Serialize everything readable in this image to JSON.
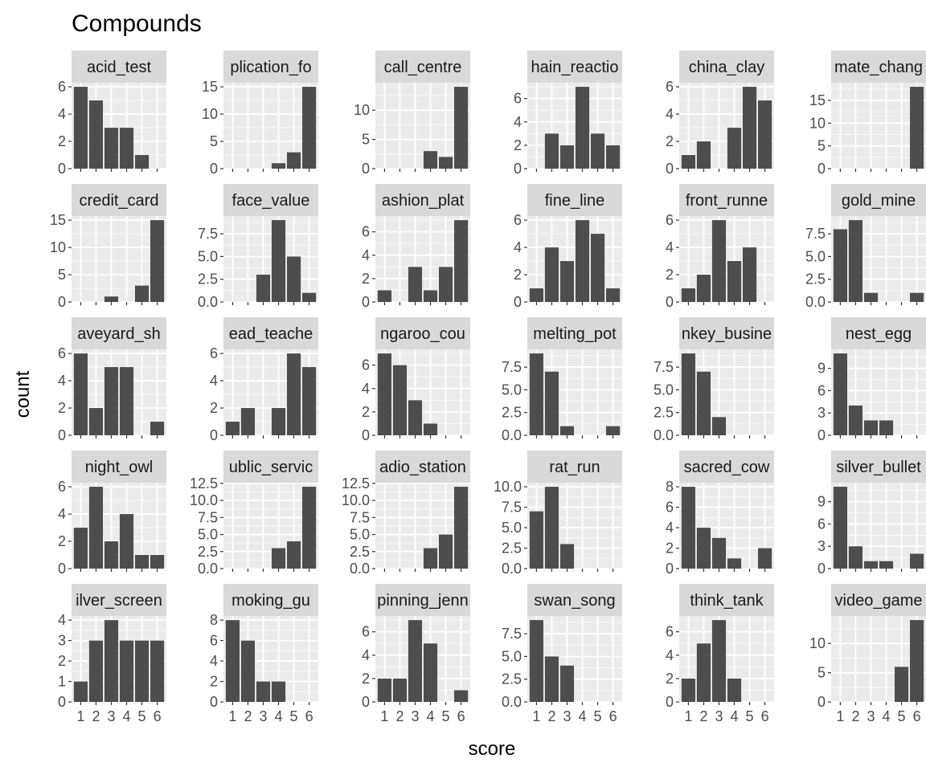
{
  "chart_data": {
    "type": "bar",
    "title": "Compounds",
    "xlabel": "score",
    "ylabel": "count",
    "x_categories": [
      1,
      2,
      3,
      4,
      5,
      6
    ],
    "x_tick_labels": [
      "1",
      "2",
      "3",
      "4",
      "5",
      "6"
    ],
    "colors": {
      "bar": "#4d4d4d",
      "panel": "#ebebeb",
      "grid": "#ffffff",
      "strip": "#d9d9d9"
    },
    "facets": [
      {
        "label": "acid_test",
        "ylim": [
          0,
          6.3
        ],
        "yticks": [
          0,
          2,
          4,
          6
        ],
        "ytick_labels": [
          "0",
          "2",
          "4",
          "6"
        ],
        "values": [
          6,
          5,
          3,
          3,
          1,
          0
        ]
      },
      {
        "label": "plication_fo",
        "ylim": [
          0,
          15.75
        ],
        "yticks": [
          0,
          5,
          10,
          15
        ],
        "ytick_labels": [
          "0",
          "5",
          "10",
          "15"
        ],
        "values": [
          0,
          0,
          0,
          1,
          3,
          15
        ]
      },
      {
        "label": "call_centre",
        "ylim": [
          0,
          14.7
        ],
        "yticks": [
          0,
          5,
          10
        ],
        "ytick_labels": [
          "0",
          "5",
          "10"
        ],
        "values": [
          0,
          0,
          0,
          3,
          2,
          14
        ]
      },
      {
        "label": "hain_reactio",
        "ylim": [
          0,
          7.35
        ],
        "yticks": [
          0,
          2,
          4,
          6
        ],
        "ytick_labels": [
          "0",
          "2",
          "4",
          "6"
        ],
        "values": [
          0,
          3,
          2,
          7,
          3,
          2
        ]
      },
      {
        "label": "china_clay",
        "ylim": [
          0,
          6.3
        ],
        "yticks": [
          0,
          2,
          4,
          6
        ],
        "ytick_labels": [
          "0",
          "2",
          "4",
          "6"
        ],
        "values": [
          1,
          2,
          0,
          3,
          6,
          5
        ]
      },
      {
        "label": "mate_chang",
        "ylim": [
          0,
          18.9
        ],
        "yticks": [
          0,
          5,
          10,
          15
        ],
        "ytick_labels": [
          "0",
          "5",
          "10",
          "15"
        ],
        "values": [
          0,
          0,
          0,
          0,
          0,
          18
        ]
      },
      {
        "label": "credit_card",
        "ylim": [
          0,
          15.75
        ],
        "yticks": [
          0,
          5,
          10,
          15
        ],
        "ytick_labels": [
          "0",
          "5",
          "10",
          "15"
        ],
        "values": [
          0,
          0,
          1,
          0,
          3,
          15
        ]
      },
      {
        "label": "face_value",
        "ylim": [
          0,
          9.45
        ],
        "yticks": [
          0,
          2.5,
          5,
          7.5
        ],
        "ytick_labels": [
          "0.0",
          "2.5",
          "5.0",
          "7.5"
        ],
        "values": [
          0,
          0,
          3,
          9,
          5,
          1
        ]
      },
      {
        "label": "ashion_plat",
        "ylim": [
          0,
          7.35
        ],
        "yticks": [
          0,
          2,
          4,
          6
        ],
        "ytick_labels": [
          "0",
          "2",
          "4",
          "6"
        ],
        "values": [
          1,
          0,
          3,
          1,
          3,
          7
        ]
      },
      {
        "label": "fine_line",
        "ylim": [
          0,
          6.3
        ],
        "yticks": [
          0,
          2,
          4,
          6
        ],
        "ytick_labels": [
          "0",
          "2",
          "4",
          "6"
        ],
        "values": [
          1,
          4,
          3,
          6,
          5,
          1
        ]
      },
      {
        "label": "front_runne",
        "ylim": [
          0,
          6.3
        ],
        "yticks": [
          0,
          2,
          4,
          6
        ],
        "ytick_labels": [
          "0",
          "2",
          "4",
          "6"
        ],
        "values": [
          1,
          2,
          6,
          3,
          4,
          0
        ]
      },
      {
        "label": "gold_mine",
        "ylim": [
          0,
          9.45
        ],
        "yticks": [
          0,
          2.5,
          5,
          7.5
        ],
        "ytick_labels": [
          "0.0",
          "2.5",
          "5.0",
          "7.5"
        ],
        "values": [
          8,
          9,
          1,
          0,
          0,
          1
        ]
      },
      {
        "label": "aveyard_sh",
        "ylim": [
          0,
          6.3
        ],
        "yticks": [
          0,
          2,
          4,
          6
        ],
        "ytick_labels": [
          "0",
          "2",
          "4",
          "6"
        ],
        "values": [
          6,
          2,
          5,
          5,
          0,
          1
        ]
      },
      {
        "label": "ead_teache",
        "ylim": [
          0,
          6.3
        ],
        "yticks": [
          0,
          2,
          4,
          6
        ],
        "ytick_labels": [
          "0",
          "2",
          "4",
          "6"
        ],
        "values": [
          1,
          2,
          0,
          2,
          6,
          5
        ]
      },
      {
        "label": "ngaroo_cou",
        "ylim": [
          0,
          7.35
        ],
        "yticks": [
          0,
          2,
          4,
          6
        ],
        "ytick_labels": [
          "0",
          "2",
          "4",
          "6"
        ],
        "values": [
          7,
          6,
          3,
          1,
          0,
          0
        ]
      },
      {
        "label": "melting_pot",
        "ylim": [
          0,
          9.45
        ],
        "yticks": [
          0,
          2.5,
          5,
          7.5
        ],
        "ytick_labels": [
          "0.0",
          "2.5",
          "5.0",
          "7.5"
        ],
        "values": [
          9,
          7,
          1,
          0,
          0,
          1
        ]
      },
      {
        "label": "nkey_busine",
        "ylim": [
          0,
          9.45
        ],
        "yticks": [
          0,
          2.5,
          5,
          7.5
        ],
        "ytick_labels": [
          "0.0",
          "2.5",
          "5.0",
          "7.5"
        ],
        "values": [
          9,
          7,
          2,
          0,
          0,
          0
        ]
      },
      {
        "label": "nest_egg",
        "ylim": [
          0,
          11.55
        ],
        "yticks": [
          0,
          3,
          6,
          9
        ],
        "ytick_labels": [
          "0",
          "3",
          "6",
          "9"
        ],
        "values": [
          11,
          4,
          2,
          2,
          0,
          0
        ]
      },
      {
        "label": "night_owl",
        "ylim": [
          0,
          6.3
        ],
        "yticks": [
          0,
          2,
          4,
          6
        ],
        "ytick_labels": [
          "0",
          "2",
          "4",
          "6"
        ],
        "values": [
          3,
          6,
          2,
          4,
          1,
          1
        ]
      },
      {
        "label": "ublic_servic",
        "ylim": [
          0,
          12.6
        ],
        "yticks": [
          0,
          2.5,
          5,
          7.5,
          10,
          12.5
        ],
        "ytick_labels": [
          "0.0",
          "2.5",
          "5.0",
          "7.5",
          "10.0",
          "12.5"
        ],
        "values": [
          0,
          0,
          0,
          3,
          4,
          12
        ]
      },
      {
        "label": "adio_station",
        "ylim": [
          0,
          12.6
        ],
        "yticks": [
          0,
          2.5,
          5,
          7.5,
          10,
          12.5
        ],
        "ytick_labels": [
          "0.0",
          "2.5",
          "5.0",
          "7.5",
          "10.0",
          "12.5"
        ],
        "values": [
          0,
          0,
          0,
          3,
          5,
          12
        ]
      },
      {
        "label": "rat_run",
        "ylim": [
          0,
          10.5
        ],
        "yticks": [
          0,
          2.5,
          5,
          7.5,
          10
        ],
        "ytick_labels": [
          "0.0",
          "2.5",
          "5.0",
          "7.5",
          "10.0"
        ],
        "values": [
          7,
          10,
          3,
          0,
          0,
          0
        ]
      },
      {
        "label": "sacred_cow",
        "ylim": [
          0,
          8.4
        ],
        "yticks": [
          0,
          2,
          4,
          6,
          8
        ],
        "ytick_labels": [
          "0",
          "2",
          "4",
          "6",
          "8"
        ],
        "values": [
          8,
          4,
          3,
          1,
          0,
          2
        ]
      },
      {
        "label": "silver_bullet",
        "ylim": [
          0,
          11.55
        ],
        "yticks": [
          0,
          3,
          6,
          9
        ],
        "ytick_labels": [
          "0",
          "3",
          "6",
          "9"
        ],
        "values": [
          11,
          3,
          1,
          1,
          0,
          2
        ]
      },
      {
        "label": "ilver_screen",
        "ylim": [
          0,
          4.2
        ],
        "yticks": [
          0,
          1,
          2,
          3,
          4
        ],
        "ytick_labels": [
          "0",
          "1",
          "2",
          "3",
          "4"
        ],
        "values": [
          1,
          3,
          4,
          3,
          3,
          3
        ]
      },
      {
        "label": "moking_gu",
        "ylim": [
          0,
          8.4
        ],
        "yticks": [
          0,
          2,
          4,
          6,
          8
        ],
        "ytick_labels": [
          "0",
          "2",
          "4",
          "6",
          "8"
        ],
        "values": [
          8,
          6,
          2,
          2,
          0,
          0
        ]
      },
      {
        "label": "pinning_jenn",
        "ylim": [
          0,
          7.35
        ],
        "yticks": [
          0,
          2,
          4,
          6
        ],
        "ytick_labels": [
          "0",
          "2",
          "4",
          "6"
        ],
        "values": [
          2,
          2,
          7,
          5,
          0,
          1
        ]
      },
      {
        "label": "swan_song",
        "ylim": [
          0,
          9.45
        ],
        "yticks": [
          0,
          2.5,
          5,
          7.5
        ],
        "ytick_labels": [
          "0.0",
          "2.5",
          "5.0",
          "7.5"
        ],
        "values": [
          9,
          5,
          4,
          0,
          0,
          0
        ]
      },
      {
        "label": "think_tank",
        "ylim": [
          0,
          7.35
        ],
        "yticks": [
          0,
          2,
          4,
          6
        ],
        "ytick_labels": [
          "0",
          "2",
          "4",
          "6"
        ],
        "values": [
          2,
          5,
          7,
          2,
          0,
          0
        ]
      },
      {
        "label": "video_game",
        "ylim": [
          0,
          14.7
        ],
        "yticks": [
          0,
          5,
          10
        ],
        "ytick_labels": [
          "0",
          "5",
          "10"
        ],
        "values": [
          0,
          0,
          0,
          0,
          6,
          14
        ]
      }
    ]
  }
}
